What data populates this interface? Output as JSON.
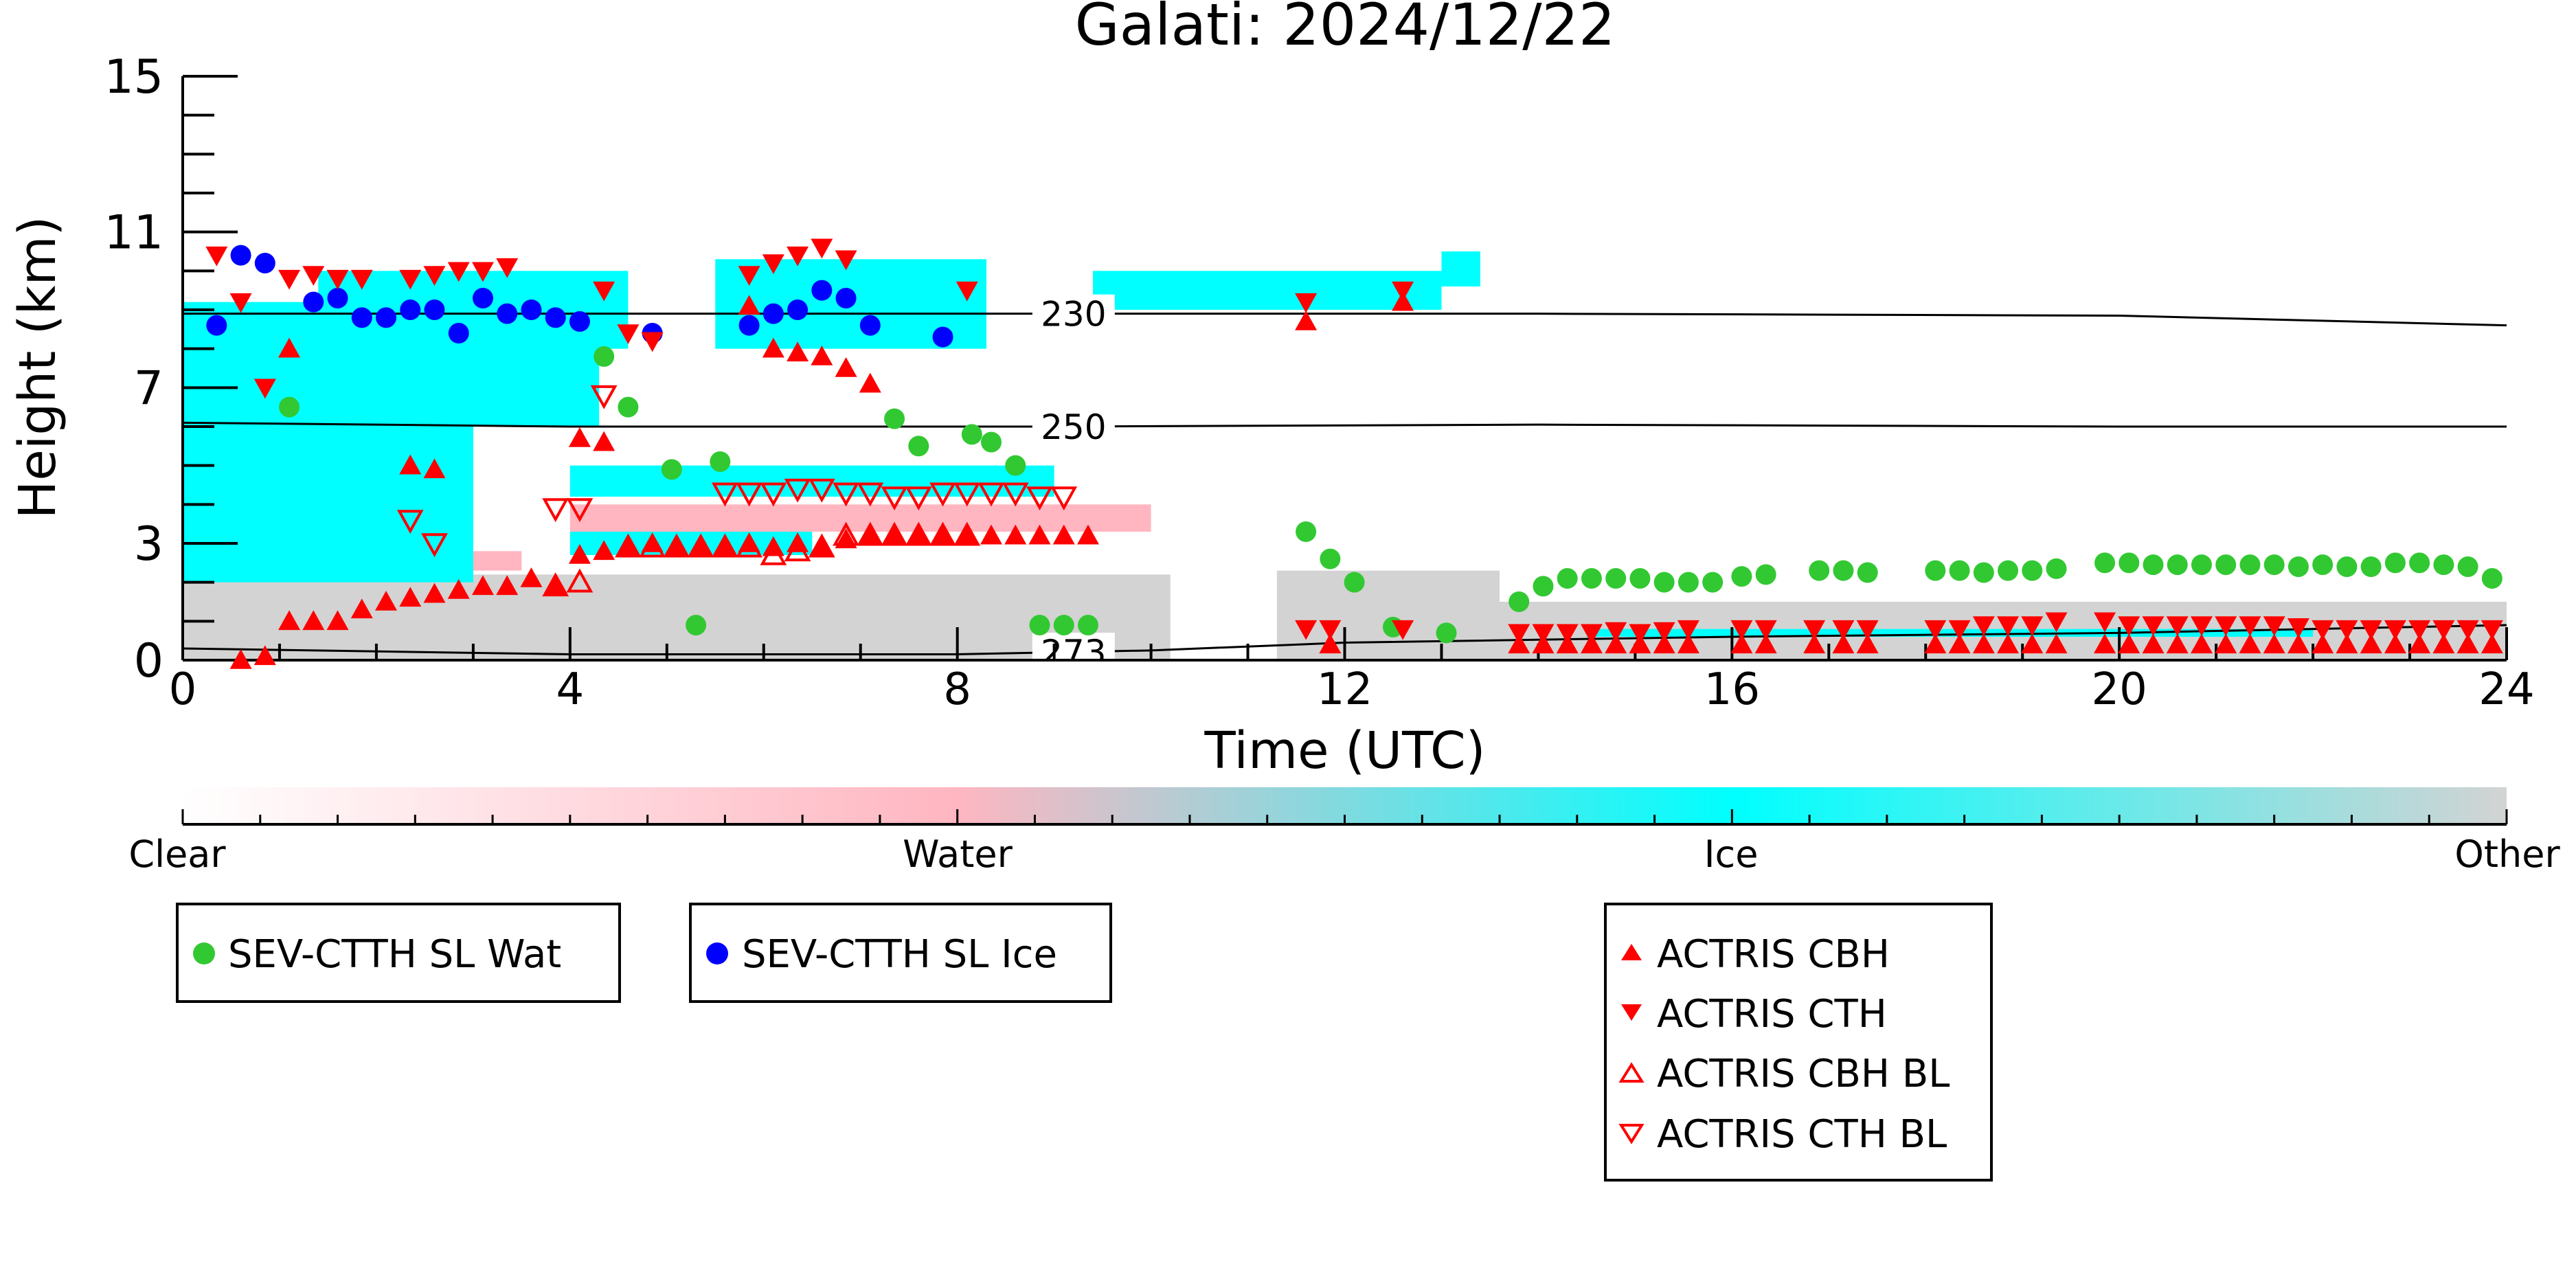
{
  "chart_data": {
    "type": "scatter",
    "title": "Galati: 2024/12/22",
    "xlabel": "Time (UTC)",
    "ylabel": "Height (km)",
    "xlim": [
      0,
      24
    ],
    "ylim": [
      0,
      15
    ],
    "x_ticks": [
      "0",
      "4",
      "8",
      "12",
      "16",
      "20",
      "24"
    ],
    "y_ticks": [
      "0",
      "3",
      "7",
      "11",
      "15"
    ],
    "colorbar": {
      "labels": [
        "Clear",
        "Water",
        "Ice",
        "Other"
      ],
      "colors": [
        "#ffffff",
        "#ffb6c1",
        "#00ffff",
        "#d3d3d3"
      ]
    },
    "isotherms": [
      {
        "label": "230",
        "x": [
          0,
          4,
          9,
          14,
          20,
          24
        ],
        "y": [
          8.9,
          8.9,
          8.9,
          8.9,
          8.85,
          8.6
        ]
      },
      {
        "label": "250",
        "x": [
          0,
          4,
          9,
          14,
          20,
          24
        ],
        "y": [
          6.1,
          6.0,
          6.0,
          6.05,
          6.0,
          6.0
        ]
      },
      {
        "label": "273",
        "x": [
          0,
          4,
          8,
          10,
          12,
          16,
          20,
          24
        ],
        "y": [
          0.3,
          0.15,
          0.15,
          0.25,
          0.45,
          0.6,
          0.7,
          0.9
        ]
      }
    ],
    "series": [
      {
        "name": "SEV-CTTH SL Wat",
        "marker": "circle",
        "color": "#32c832",
        "x": [
          1.1,
          4.35,
          4.6,
          5.05,
          5.3,
          5.55,
          7.35,
          7.6,
          8.15,
          8.35,
          8.6,
          8.85,
          9.1,
          9.35,
          11.6,
          11.85,
          12.1,
          12.5,
          13.05,
          13.8,
          14.05,
          14.3,
          14.55,
          14.8,
          15.05,
          15.3,
          15.55,
          15.8,
          16.1,
          16.35,
          16.9,
          17.15,
          17.4,
          18.1,
          18.35,
          18.6,
          18.85,
          19.1,
          19.35,
          19.85,
          20.1,
          20.35,
          20.6,
          20.85,
          21.1,
          21.35,
          21.6,
          21.85,
          22.1,
          22.35,
          22.6,
          22.85,
          23.1,
          23.35,
          23.6,
          23.85
        ],
        "y": [
          6.5,
          7.8,
          6.5,
          4.9,
          0.9,
          5.1,
          6.2,
          5.5,
          5.8,
          5.6,
          5.0,
          0.9,
          0.9,
          0.9,
          3.3,
          2.6,
          2.0,
          0.85,
          0.7,
          1.5,
          1.9,
          2.1,
          2.1,
          2.1,
          2.1,
          2.0,
          2.0,
          2.0,
          2.15,
          2.2,
          2.3,
          2.3,
          2.25,
          2.3,
          2.3,
          2.25,
          2.3,
          2.3,
          2.35,
          2.5,
          2.5,
          2.45,
          2.45,
          2.45,
          2.45,
          2.45,
          2.45,
          2.4,
          2.45,
          2.4,
          2.4,
          2.5,
          2.5,
          2.45,
          2.4,
          2.1
        ]
      },
      {
        "name": "SEV-CTTH SL Ice",
        "marker": "circle",
        "color": "#0000ff",
        "x": [
          0.35,
          0.6,
          0.85,
          1.35,
          1.6,
          1.85,
          2.1,
          2.35,
          2.6,
          2.85,
          3.1,
          3.35,
          3.6,
          3.85,
          4.1,
          4.85,
          5.85,
          6.1,
          6.35,
          6.6,
          6.85,
          7.1,
          7.85
        ],
        "y": [
          8.6,
          10.4,
          10.2,
          9.2,
          9.3,
          8.8,
          8.8,
          9.0,
          9.0,
          8.4,
          9.3,
          8.9,
          9.0,
          8.8,
          8.7,
          8.4,
          8.6,
          8.9,
          9.0,
          9.5,
          9.3,
          8.6,
          8.3
        ]
      },
      {
        "name": "ACTRIS CBH",
        "marker": "triangle-up",
        "color": "#ff0000",
        "x": [
          0.6,
          0.85,
          1.1,
          1.35,
          1.6,
          1.85,
          2.1,
          2.35,
          2.6,
          2.85,
          3.1,
          3.35,
          3.6,
          3.85,
          4.1,
          4.35,
          4.6,
          4.85,
          5.1,
          5.35,
          5.6,
          5.85,
          6.1,
          6.35,
          6.6,
          6.85,
          7.1,
          7.35,
          7.6,
          7.85,
          8.1,
          8.35,
          8.6,
          8.85,
          9.1,
          9.35,
          1.1,
          2.35,
          2.6,
          4.1,
          4.35,
          5.85,
          6.1,
          6.35,
          6.6,
          6.85,
          7.1,
          11.6,
          11.85,
          12.6,
          13.8,
          14.05,
          14.3,
          14.55,
          14.8,
          15.05,
          15.3,
          15.55,
          16.1,
          16.35,
          16.85,
          17.15,
          17.4,
          18.1,
          18.35,
          18.6,
          18.85,
          19.1,
          19.35,
          19.85,
          20.1,
          20.35,
          20.6,
          20.85,
          21.1,
          21.35,
          21.6,
          21.85,
          22.1,
          22.35,
          22.6,
          22.85,
          23.1,
          23.35,
          23.6,
          23.85
        ],
        "y": [
          0.0,
          0.1,
          1.0,
          1.0,
          1.0,
          1.3,
          1.5,
          1.6,
          1.7,
          1.8,
          1.9,
          1.9,
          2.1,
          1.9,
          2.7,
          2.8,
          2.9,
          3.0,
          2.9,
          2.9,
          2.9,
          3.0,
          2.9,
          3.0,
          2.9,
          3.1,
          3.2,
          3.2,
          3.2,
          3.2,
          3.2,
          3.2,
          3.2,
          3.2,
          3.2,
          3.2,
          8.0,
          5.0,
          4.9,
          5.7,
          5.6,
          9.1,
          8.0,
          7.9,
          7.8,
          7.5,
          7.1,
          8.7,
          0.4,
          9.2,
          0.4,
          0.4,
          0.4,
          0.4,
          0.4,
          0.4,
          0.4,
          0.4,
          0.4,
          0.4,
          0.4,
          0.4,
          0.4,
          0.4,
          0.4,
          0.4,
          0.4,
          0.4,
          0.4,
          0.4,
          0.4,
          0.4,
          0.4,
          0.4,
          0.4,
          0.4,
          0.4,
          0.4,
          0.4,
          0.4,
          0.4,
          0.4,
          0.4,
          0.4,
          0.4,
          0.4
        ]
      },
      {
        "name": "ACTRIS CTH",
        "marker": "triangle-down",
        "color": "#ff0000",
        "x": [
          0.35,
          0.6,
          0.85,
          1.1,
          1.35,
          1.6,
          1.85,
          2.35,
          2.6,
          2.85,
          3.1,
          3.35,
          4.35,
          4.6,
          4.85,
          5.85,
          6.1,
          6.35,
          6.6,
          6.85,
          8.1,
          11.6,
          12.6,
          11.6,
          11.85,
          12.6,
          13.8,
          14.05,
          14.3,
          14.55,
          14.8,
          15.05,
          15.3,
          15.55,
          16.1,
          16.35,
          16.85,
          17.15,
          17.4,
          18.1,
          18.35,
          18.6,
          18.85,
          19.1,
          19.35,
          19.85,
          20.1,
          20.35,
          20.6,
          20.85,
          21.1,
          21.35,
          21.6,
          21.85,
          22.1,
          22.35,
          22.6,
          22.85,
          23.1,
          23.35,
          23.6,
          23.85
        ],
        "y": [
          10.4,
          9.2,
          7.0,
          9.8,
          9.9,
          9.8,
          9.8,
          9.8,
          9.9,
          10.0,
          10.0,
          10.1,
          9.5,
          8.4,
          8.2,
          9.9,
          10.2,
          10.4,
          10.6,
          10.3,
          9.5,
          9.2,
          9.5,
          0.8,
          0.8,
          0.8,
          0.7,
          0.7,
          0.7,
          0.7,
          0.75,
          0.7,
          0.75,
          0.8,
          0.8,
          0.8,
          0.8,
          0.8,
          0.8,
          0.8,
          0.8,
          0.9,
          0.9,
          0.9,
          1.0,
          1.0,
          0.9,
          0.9,
          0.9,
          0.9,
          0.9,
          0.9,
          0.9,
          0.85,
          0.8,
          0.8,
          0.8,
          0.8,
          0.8,
          0.8,
          0.8,
          0.8
        ]
      },
      {
        "name": "ACTRIS CBH BL",
        "marker": "triangle-up-open",
        "color": "#ff0000",
        "x": [
          3.85,
          4.1,
          4.6,
          4.85,
          5.1,
          5.35,
          5.6,
          5.85,
          6.1,
          6.35,
          6.6,
          6.85,
          7.1,
          7.35,
          7.6,
          7.85,
          8.1
        ],
        "y": [
          1.9,
          2.0,
          2.9,
          2.9,
          2.9,
          2.9,
          2.9,
          2.9,
          2.7,
          2.8,
          2.9,
          3.2,
          3.2,
          3.2,
          3.2,
          3.2,
          3.2
        ]
      },
      {
        "name": "ACTRIS CTH BL",
        "marker": "triangle-down-open",
        "color": "#ff0000",
        "x": [
          2.35,
          2.6,
          3.85,
          4.1,
          4.35,
          5.6,
          5.85,
          6.1,
          6.35,
          6.6,
          6.85,
          7.1,
          7.35,
          7.6,
          7.85,
          8.1,
          8.35,
          8.6,
          8.85,
          9.1
        ],
        "y": [
          3.6,
          3.0,
          3.9,
          3.9,
          6.8,
          4.3,
          4.3,
          4.3,
          4.4,
          4.4,
          4.3,
          4.3,
          4.2,
          4.2,
          4.3,
          4.3,
          4.3,
          4.3,
          4.2,
          4.2
        ]
      }
    ],
    "legends": [
      {
        "items": [
          "SEV-CTTH SL Wat"
        ]
      },
      {
        "items": [
          "SEV-CTTH SL Ice"
        ]
      },
      {
        "items": [
          "ACTRIS CBH",
          "ACTRIS CTH",
          "ACTRIS CBH BL",
          "ACTRIS CTH BL"
        ]
      }
    ]
  }
}
